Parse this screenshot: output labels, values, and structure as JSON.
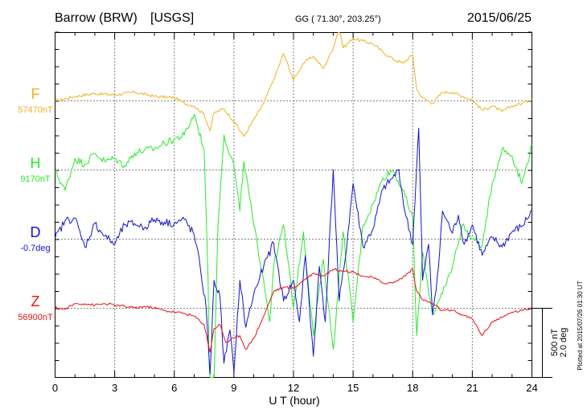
{
  "chart_data": {
    "type": "line",
    "station": "Barrow (BRW)",
    "network": "[USGS]",
    "coords": "GG ( 71.30°, 203.25°)",
    "date": "2015/06/25",
    "xlabel": "U T (hour)",
    "xlim": [
      0,
      24
    ],
    "xticks": [
      "0",
      "3",
      "6",
      "9",
      "12",
      "15",
      "18",
      "21",
      "24"
    ],
    "grid": true,
    "scale_labels": [
      "500 nT",
      "2.0 deg"
    ],
    "plotted_note": "Plotted at 2015/07/26 01:30 UT",
    "series": [
      {
        "name": "F",
        "baseline_label": "57470nT",
        "color": "#f2b21c",
        "x": [
          0,
          1,
          2,
          3,
          4,
          5,
          6,
          6.5,
          7,
          7.5,
          7.8,
          8,
          8.5,
          9,
          9.5,
          10,
          10.5,
          11,
          11.5,
          12,
          12.5,
          13,
          13.5,
          14,
          14.3,
          14.5,
          15,
          15.5,
          16,
          16.5,
          17,
          17.5,
          18,
          18.2,
          18.5,
          19,
          19.5,
          20,
          20.5,
          21,
          21.5,
          22,
          22.5,
          23,
          23.5,
          24
        ],
        "y": [
          -5,
          30,
          50,
          40,
          60,
          30,
          20,
          -20,
          -40,
          -100,
          -220,
          -90,
          -60,
          -150,
          -260,
          -140,
          -20,
          150,
          340,
          150,
          270,
          320,
          230,
          380,
          530,
          380,
          450,
          430,
          410,
          350,
          300,
          270,
          330,
          80,
          20,
          -20,
          60,
          60,
          30,
          5,
          -70,
          -40,
          -80,
          -40,
          -20,
          10
        ]
      },
      {
        "name": "H",
        "baseline_label": "9170nT",
        "color": "#22ee22",
        "x": [
          0,
          0.5,
          1,
          1.5,
          2,
          2.5,
          3,
          3.5,
          4,
          4.5,
          5,
          5.5,
          6,
          6.5,
          7,
          7.2,
          7.5,
          7.7,
          7.8,
          8,
          8.2,
          8.5,
          9,
          9.3,
          9.5,
          10,
          10.5,
          10.8,
          11,
          11.5,
          12,
          12.5,
          13,
          13.5,
          14,
          14.5,
          15,
          15.5,
          16,
          16.5,
          17,
          17.5,
          18,
          18.2,
          18.5,
          19,
          19.5,
          20,
          20.5,
          21,
          21.5,
          22,
          22.5,
          23,
          23.5,
          24
        ],
        "y": [
          -10,
          -150,
          80,
          40,
          120,
          60,
          80,
          30,
          120,
          140,
          150,
          190,
          220,
          250,
          400,
          300,
          150,
          -800,
          -1950,
          -1500,
          -400,
          250,
          30,
          -300,
          60,
          -400,
          -800,
          -1100,
          -700,
          -400,
          -1000,
          -450,
          -1200,
          -650,
          -1300,
          -450,
          -1100,
          -400,
          -250,
          -60,
          0,
          -150,
          -350,
          -1200,
          -600,
          -1050,
          -900,
          -700,
          -400,
          -500,
          -550,
          -100,
          150,
          100,
          -100,
          180
        ]
      },
      {
        "name": "D",
        "baseline_label": "-0.7deg",
        "color": "#1111dd",
        "x": [
          0,
          0.5,
          1,
          1.3,
          1.5,
          2,
          2.5,
          3,
          3.5,
          4,
          4.5,
          5,
          5.5,
          6,
          6.5,
          7,
          7.3,
          7.6,
          7.8,
          8,
          8.3,
          8.5,
          8.8,
          9,
          9.3,
          9.6,
          10,
          10.5,
          11,
          11.5,
          12,
          12.3,
          12.6,
          13,
          13.3,
          13.6,
          14,
          14.3,
          14.6,
          15,
          15.5,
          16,
          16.5,
          17,
          17.3,
          17.6,
          18,
          18.3,
          18.5,
          18.8,
          19,
          19.3,
          19.5,
          20,
          20.3,
          20.6,
          21,
          21.5,
          22,
          22.5,
          23,
          23.5,
          24
        ],
        "y": [
          0,
          130,
          150,
          20,
          -60,
          110,
          20,
          -40,
          100,
          110,
          80,
          140,
          120,
          110,
          140,
          30,
          -200,
          -500,
          -980,
          -300,
          -420,
          -900,
          -660,
          -970,
          -300,
          -640,
          -400,
          -200,
          -30,
          -450,
          -300,
          -600,
          -120,
          -850,
          -200,
          -600,
          500,
          -450,
          -150,
          400,
          -60,
          70,
          360,
          440,
          500,
          200,
          -40,
          800,
          -300,
          -40,
          -550,
          -200,
          200,
          40,
          170,
          -40,
          100,
          -120,
          10,
          -60,
          50,
          90,
          200
        ]
      },
      {
        "name": "Z",
        "baseline_label": "56900nT",
        "color": "#ee1111",
        "x": [
          0,
          0.5,
          1,
          1.5,
          2,
          2.5,
          3,
          3.5,
          4,
          4.5,
          5,
          5.5,
          6,
          6.5,
          7,
          7.5,
          7.8,
          8,
          8.3,
          8.6,
          9,
          9.3,
          9.6,
          10,
          10.5,
          11,
          11.5,
          12,
          12.5,
          13,
          13.5,
          14,
          14.5,
          15,
          15.5,
          16,
          16.5,
          17,
          17.5,
          18,
          18.2,
          18.5,
          19,
          19.5,
          20,
          20.5,
          21,
          21.5,
          22,
          22.5,
          23,
          23.5,
          24
        ],
        "y": [
          0,
          -10,
          30,
          30,
          20,
          30,
          20,
          10,
          0,
          10,
          0,
          -20,
          -30,
          -40,
          -60,
          -120,
          -320,
          -150,
          -120,
          -250,
          -220,
          -200,
          -300,
          -220,
          -60,
          120,
          150,
          140,
          200,
          250,
          230,
          280,
          270,
          260,
          230,
          220,
          180,
          180,
          220,
          280,
          120,
          60,
          30,
          -20,
          -20,
          -50,
          -80,
          -200,
          -100,
          -70,
          -30,
          -20,
          0
        ]
      }
    ]
  }
}
